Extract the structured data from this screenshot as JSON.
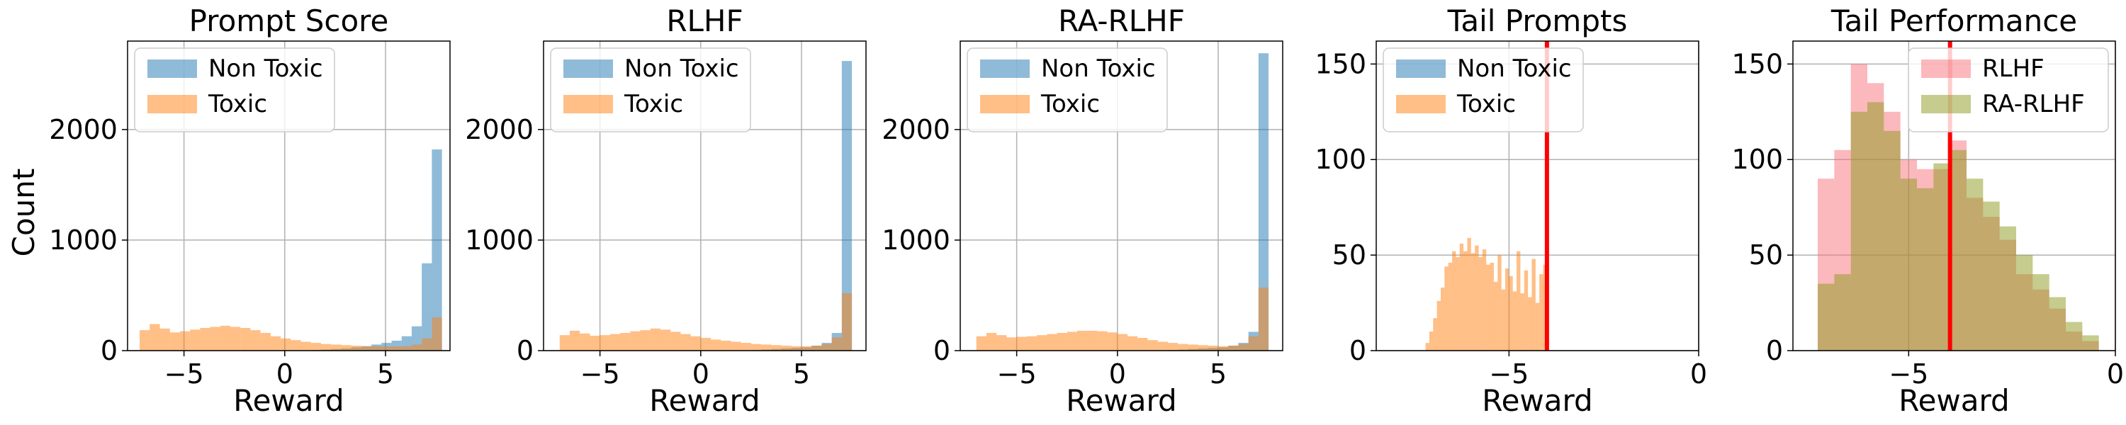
{
  "figure": {
    "shared_ylabel": "Count"
  },
  "colors": {
    "non_toxic": "#1f77b4",
    "toxic": "#ff7f0e",
    "rlhf": "#f8727c",
    "ra_rlhf": "#8c9a1c",
    "threshold": "#ff0000",
    "grid": "#b0b0b0"
  },
  "chart_data": [
    {
      "type": "histogram",
      "title": "Prompt Score",
      "xlabel": "Reward",
      "ylabel": "Count",
      "xlim": [
        -7.8,
        8.2
      ],
      "ylim": [
        0,
        2800
      ],
      "xticks": [
        -5,
        0,
        5
      ],
      "xtick_labels": [
        "−5",
        "0",
        "5"
      ],
      "yticks": [
        0,
        1000,
        2000
      ],
      "ytick_labels": [
        "0",
        "1000",
        "2000"
      ],
      "grid": true,
      "legend_position": "upper-left",
      "bin_edges": [
        -7.2,
        -6.7,
        -6.2,
        -5.7,
        -5.2,
        -4.7,
        -4.2,
        -3.7,
        -3.2,
        -2.7,
        -2.2,
        -1.7,
        -1.2,
        -0.7,
        -0.2,
        0.3,
        0.8,
        1.3,
        1.8,
        2.3,
        2.8,
        3.3,
        3.8,
        4.3,
        4.8,
        5.3,
        5.8,
        6.3,
        6.8,
        7.3,
        7.8
      ],
      "series": [
        {
          "name": "Non Toxic",
          "color_key": "non_toxic",
          "values": [
            0,
            0,
            0,
            0,
            0,
            0,
            0,
            0,
            0,
            0,
            0,
            0,
            0,
            0,
            0,
            0,
            0,
            5,
            10,
            15,
            20,
            30,
            40,
            55,
            70,
            90,
            130,
            220,
            790,
            1820
          ]
        },
        {
          "name": "Toxic",
          "color_key": "toxic",
          "values": [
            185,
            240,
            200,
            165,
            175,
            190,
            205,
            215,
            225,
            215,
            205,
            185,
            160,
            130,
            110,
            95,
            80,
            70,
            60,
            55,
            50,
            45,
            40,
            40,
            38,
            38,
            40,
            55,
            110,
            300
          ]
        }
      ]
    },
    {
      "type": "histogram",
      "title": "RLHF",
      "xlabel": "Reward",
      "ylabel": "",
      "xlim": [
        -7.8,
        8.2
      ],
      "ylim": [
        0,
        2800
      ],
      "xticks": [
        -5,
        0,
        5
      ],
      "xtick_labels": [
        "−5",
        "0",
        "5"
      ],
      "yticks": [
        0,
        1000,
        2000
      ],
      "ytick_labels": [
        "0",
        "1000",
        "2000"
      ],
      "grid": true,
      "legend_position": "upper-left",
      "bin_edges": [
        -7.0,
        -6.5,
        -6.0,
        -5.5,
        -5.0,
        -4.5,
        -4.0,
        -3.5,
        -3.0,
        -2.5,
        -2.0,
        -1.5,
        -1.0,
        -0.5,
        0.0,
        0.5,
        1.0,
        1.5,
        2.0,
        2.5,
        3.0,
        3.5,
        4.0,
        4.5,
        5.0,
        5.5,
        6.0,
        6.5,
        7.0,
        7.5
      ],
      "series": [
        {
          "name": "Non Toxic",
          "color_key": "non_toxic",
          "values": [
            0,
            0,
            0,
            0,
            0,
            0,
            0,
            0,
            0,
            0,
            0,
            0,
            0,
            0,
            0,
            0,
            0,
            0,
            0,
            5,
            10,
            15,
            20,
            25,
            30,
            45,
            70,
            160,
            2620
          ]
        },
        {
          "name": "Toxic",
          "color_key": "toxic",
          "values": [
            140,
            180,
            155,
            135,
            140,
            150,
            160,
            175,
            185,
            200,
            190,
            170,
            150,
            130,
            115,
            100,
            90,
            80,
            70,
            60,
            55,
            50,
            45,
            40,
            40,
            45,
            60,
            120,
            520
          ]
        }
      ]
    },
    {
      "type": "histogram",
      "title": "RA-RLHF",
      "xlabel": "Reward",
      "ylabel": "",
      "xlim": [
        -7.8,
        8.2
      ],
      "ylim": [
        0,
        2800
      ],
      "xticks": [
        -5,
        0,
        5
      ],
      "xtick_labels": [
        "−5",
        "0",
        "5"
      ],
      "yticks": [
        0,
        1000,
        2000
      ],
      "ytick_labels": [
        "0",
        "1000",
        "2000"
      ],
      "grid": true,
      "legend_position": "upper-left",
      "bin_edges": [
        -7.0,
        -6.5,
        -6.0,
        -5.5,
        -5.0,
        -4.5,
        -4.0,
        -3.5,
        -3.0,
        -2.5,
        -2.0,
        -1.5,
        -1.0,
        -0.5,
        0.0,
        0.5,
        1.0,
        1.5,
        2.0,
        2.5,
        3.0,
        3.5,
        4.0,
        4.5,
        5.0,
        5.5,
        6.0,
        6.5,
        7.0,
        7.5
      ],
      "series": [
        {
          "name": "Non Toxic",
          "color_key": "non_toxic",
          "values": [
            0,
            0,
            0,
            0,
            0,
            0,
            0,
            0,
            0,
            0,
            0,
            0,
            0,
            0,
            0,
            0,
            0,
            0,
            0,
            5,
            10,
            15,
            20,
            25,
            30,
            45,
            70,
            170,
            2690
          ]
        },
        {
          "name": "Toxic",
          "color_key": "toxic",
          "values": [
            130,
            160,
            140,
            120,
            125,
            130,
            140,
            150,
            160,
            170,
            180,
            180,
            175,
            165,
            150,
            130,
            115,
            95,
            80,
            70,
            60,
            55,
            50,
            45,
            40,
            45,
            60,
            130,
            570
          ]
        }
      ]
    },
    {
      "type": "histogram",
      "title": "Tail Prompts",
      "xlabel": "Reward",
      "ylabel": "",
      "xlim": [
        -8.5,
        0
      ],
      "ylim": [
        0,
        162
      ],
      "xticks": [
        -5,
        0
      ],
      "xtick_labels": [
        "−5",
        "0"
      ],
      "yticks": [
        0,
        50,
        100,
        150
      ],
      "ytick_labels": [
        "0",
        "50",
        "100",
        "150"
      ],
      "grid": true,
      "legend_position": "upper-left",
      "threshold_x": -4.0,
      "bin_edges": [
        -7.2,
        -7.1,
        -7.0,
        -6.9,
        -6.8,
        -6.7,
        -6.6,
        -6.5,
        -6.4,
        -6.3,
        -6.2,
        -6.1,
        -6.0,
        -5.9,
        -5.8,
        -5.7,
        -5.6,
        -5.5,
        -5.4,
        -5.3,
        -5.2,
        -5.1,
        -5.0,
        -4.9,
        -4.8,
        -4.7,
        -4.6,
        -4.5,
        -4.4,
        -4.3,
        -4.2,
        -4.1,
        -4.0
      ],
      "series": [
        {
          "name": "Non Toxic",
          "color_key": "non_toxic",
          "values": [
            0,
            0,
            0,
            0,
            0,
            0,
            0,
            0,
            0,
            0,
            0,
            0,
            0,
            0,
            0,
            0,
            0,
            0,
            0,
            0,
            0,
            0,
            0,
            0,
            0,
            0,
            0,
            0,
            0,
            0,
            0,
            0
          ]
        },
        {
          "name": "Toxic",
          "color_key": "toxic",
          "values": [
            4,
            10,
            17,
            26,
            33,
            44,
            46,
            52,
            49,
            56,
            52,
            59,
            51,
            55,
            49,
            53,
            45,
            46,
            36,
            50,
            32,
            43,
            39,
            31,
            52,
            30,
            42,
            28,
            48,
            25,
            40,
            45
          ]
        }
      ]
    },
    {
      "type": "histogram",
      "title": "Tail Performance",
      "xlabel": "Reward",
      "ylabel": "",
      "xlim": [
        -7.8,
        0
      ],
      "ylim": [
        0,
        162
      ],
      "xticks": [
        -5,
        0
      ],
      "xtick_labels": [
        "−5",
        "0"
      ],
      "yticks": [
        0,
        50,
        100,
        150
      ],
      "ytick_labels": [
        "0",
        "50",
        "100",
        "150"
      ],
      "grid": true,
      "legend_position": "upper-right",
      "threshold_x": -4.0,
      "bin_edges": [
        -7.2,
        -6.8,
        -6.4,
        -6.0,
        -5.6,
        -5.2,
        -4.8,
        -4.4,
        -4.0,
        -3.6,
        -3.2,
        -2.8,
        -2.4,
        -2.0,
        -1.6,
        -1.2,
        -0.8,
        -0.4
      ],
      "series": [
        {
          "name": "RLHF",
          "color_key": "rlhf",
          "values": [
            90,
            105,
            150,
            140,
            125,
            100,
            95,
            95,
            110,
            80,
            70,
            58,
            40,
            32,
            22,
            10,
            5
          ]
        },
        {
          "name": "RA-RLHF",
          "color_key": "ra_rlhf",
          "values": [
            35,
            40,
            125,
            130,
            115,
            90,
            85,
            98,
            105,
            90,
            78,
            65,
            50,
            40,
            28,
            15,
            8
          ]
        }
      ]
    }
  ]
}
